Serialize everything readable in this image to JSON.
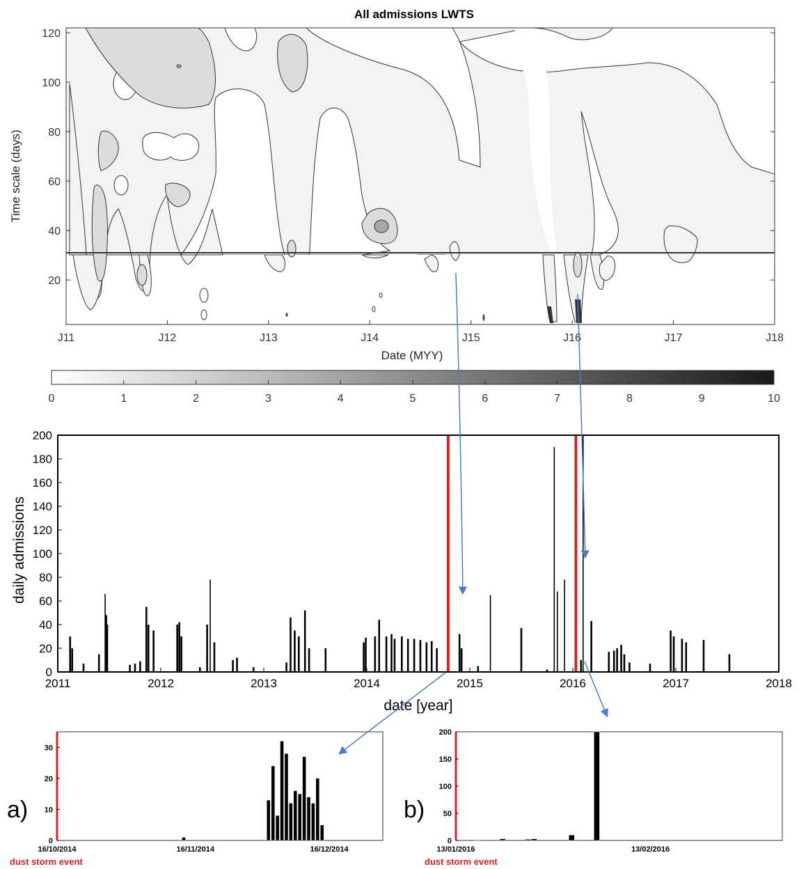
{
  "chart_data": [
    {
      "type": "heatmap",
      "title": "All admissions LWTS",
      "xlabel": "Date (MYY)",
      "ylabel": "Time scale (days)",
      "xticks": [
        "J11",
        "J12",
        "J13",
        "J14",
        "J15",
        "J16",
        "J17",
        "J18"
      ],
      "yticks": [
        "20",
        "40",
        "60",
        "80",
        "100",
        "120"
      ],
      "ylim": [
        2,
        122
      ],
      "reference_line_y": 31,
      "colorbar": {
        "ticks": [
          "0",
          "1",
          "2",
          "3",
          "4",
          "5",
          "6",
          "7",
          "8",
          "9",
          "10"
        ],
        "range": [
          0,
          10
        ],
        "colors": [
          "#ffffff",
          "#1a1a1a"
        ]
      }
    },
    {
      "type": "bar",
      "xlabel": "date [year]",
      "ylabel": "daily admissions",
      "xticks": [
        "2011",
        "2012",
        "2013",
        "2014",
        "2015",
        "2016",
        "2017",
        "2018"
      ],
      "yticks": [
        "0",
        "20",
        "40",
        "60",
        "80",
        "100",
        "120",
        "140",
        "160",
        "180",
        "200"
      ],
      "ylim": [
        0,
        200
      ],
      "xlim": [
        2011,
        2018
      ],
      "red_lines_x": [
        2014.79,
        2016.03
      ],
      "x": [
        2011.12,
        2011.14,
        2011.25,
        2011.4,
        2011.46,
        2011.47,
        2011.48,
        2011.7,
        2011.75,
        2011.8,
        2011.86,
        2011.88,
        2011.93,
        2012.16,
        2012.18,
        2012.2,
        2012.38,
        2012.45,
        2012.48,
        2012.52,
        2012.7,
        2012.74,
        2012.9,
        2013.22,
        2013.26,
        2013.3,
        2013.34,
        2013.4,
        2013.44,
        2013.6,
        2013.97,
        2013.99,
        2014.08,
        2014.12,
        2014.19,
        2014.24,
        2014.27,
        2014.34,
        2014.4,
        2014.46,
        2014.52,
        2014.58,
        2014.63,
        2014.68,
        2014.9,
        2014.92,
        2015.08,
        2015.2,
        2015.5,
        2015.75,
        2015.82,
        2015.85,
        2015.92,
        2016.08,
        2016.1,
        2016.18,
        2016.35,
        2016.4,
        2016.43,
        2016.47,
        2016.5,
        2016.55,
        2016.75,
        2016.95,
        2016.98,
        2017.06,
        2017.1,
        2017.27,
        2017.52
      ],
      "values": [
        30,
        20,
        7,
        15,
        66,
        48,
        40,
        6,
        7,
        9,
        55,
        40,
        35,
        40,
        42,
        30,
        4,
        40,
        78,
        25,
        10,
        12,
        4,
        8,
        46,
        35,
        30,
        52,
        20,
        20,
        25,
        29,
        30,
        44,
        30,
        32,
        28,
        30,
        28,
        28,
        27,
        25,
        26,
        20,
        32,
        20,
        5,
        65,
        37,
        2,
        190,
        68,
        78,
        10,
        200,
        43,
        17,
        18,
        20,
        23,
        15,
        8,
        7,
        35,
        30,
        28,
        25,
        27,
        15
      ]
    },
    {
      "type": "bar",
      "panel_label": "a)",
      "xticks": [
        "16/10/2014",
        "16/11/2014",
        "16/12/2014"
      ],
      "yticks": [
        "0",
        "10",
        "20",
        "30"
      ],
      "ylim": [
        0,
        35
      ],
      "annotation": "dust storm event",
      "x": [
        28,
        47,
        48,
        49,
        50,
        51,
        52,
        53,
        54,
        55,
        56,
        57,
        58,
        59,
        60
      ],
      "values": [
        1,
        13,
        24,
        8,
        32,
        28,
        12,
        16,
        15,
        27,
        14,
        12,
        20,
        5,
        0
      ]
    },
    {
      "type": "bar",
      "panel_label": "b)",
      "xticks": [
        "13/01/2016",
        "13/02/2016"
      ],
      "yticks": [
        "0",
        "50",
        "100",
        "150",
        "200"
      ],
      "ylim": [
        0,
        200
      ],
      "annotation": "dust storm event",
      "x": [
        3,
        7,
        11,
        12,
        18,
        22
      ],
      "values": [
        1,
        3,
        2,
        3,
        10,
        200
      ]
    }
  ]
}
